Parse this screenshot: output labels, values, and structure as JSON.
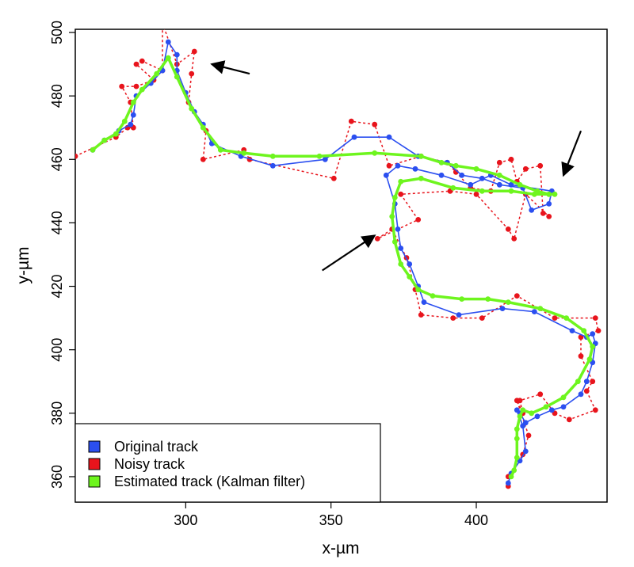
{
  "chart_data": {
    "type": "line",
    "xlabel": "x-µm",
    "ylabel": "y-µm",
    "xlim": [
      262,
      445
    ],
    "ylim": [
      352,
      501
    ],
    "x_ticks": [
      300,
      350,
      400
    ],
    "y_ticks": [
      360,
      380,
      400,
      420,
      440,
      460,
      480,
      500
    ],
    "grid": false,
    "legend_position": "bottom-left",
    "series": [
      {
        "name": "Original track",
        "color": "#2b4ff0",
        "line_style": "solid",
        "points": [
          [
            268,
            463
          ],
          [
            272,
            466
          ],
          [
            277,
            469
          ],
          [
            281,
            471
          ],
          [
            282,
            474
          ],
          [
            283,
            480
          ],
          [
            288,
            484
          ],
          [
            292,
            488
          ],
          [
            294,
            497
          ],
          [
            297,
            493
          ],
          [
            297,
            488
          ],
          [
            300,
            481
          ],
          [
            303,
            475
          ],
          [
            306,
            471
          ],
          [
            309,
            465
          ],
          [
            319,
            461
          ],
          [
            330,
            458
          ],
          [
            348,
            460
          ],
          [
            358,
            467
          ],
          [
            370,
            467
          ],
          [
            380,
            461
          ],
          [
            390,
            459
          ],
          [
            395,
            455
          ],
          [
            402,
            454
          ],
          [
            408,
            452
          ],
          [
            416,
            451
          ],
          [
            419,
            444
          ],
          [
            425,
            446
          ],
          [
            426,
            450
          ],
          [
            412,
            452
          ],
          [
            405,
            455
          ],
          [
            398,
            452
          ],
          [
            388,
            455
          ],
          [
            379,
            457
          ],
          [
            373,
            458
          ],
          [
            369,
            455
          ],
          [
            372,
            446
          ],
          [
            373,
            438
          ],
          [
            374,
            432
          ],
          [
            377,
            427
          ],
          [
            380,
            420
          ],
          [
            382,
            415
          ],
          [
            394,
            411
          ],
          [
            409,
            413
          ],
          [
            420,
            412
          ],
          [
            433,
            406
          ],
          [
            438,
            404
          ],
          [
            440,
            405
          ],
          [
            441,
            402
          ],
          [
            440,
            396
          ],
          [
            438,
            390
          ],
          [
            436,
            386
          ],
          [
            430,
            382
          ],
          [
            426,
            381
          ],
          [
            421,
            379
          ],
          [
            417,
            377
          ],
          [
            415,
            380
          ],
          [
            414,
            381
          ],
          [
            416,
            376
          ],
          [
            417,
            368
          ],
          [
            415,
            365
          ],
          [
            412,
            361
          ],
          [
            411,
            358
          ]
        ]
      },
      {
        "name": "Noisy track",
        "color": "#e8141c",
        "line_style": "dashed",
        "points": [
          [
            262,
            461
          ],
          [
            276,
            467
          ],
          [
            280,
            470
          ],
          [
            282,
            470
          ],
          [
            281,
            478
          ],
          [
            278,
            483
          ],
          [
            283,
            483
          ],
          [
            289,
            485
          ],
          [
            283,
            490
          ],
          [
            285,
            491
          ],
          [
            292,
            488
          ],
          [
            292,
            503
          ],
          [
            297,
            490
          ],
          [
            303,
            494
          ],
          [
            302,
            487
          ],
          [
            301,
            478
          ],
          [
            307,
            469
          ],
          [
            306,
            460
          ],
          [
            320,
            463
          ],
          [
            322,
            460
          ],
          [
            351,
            454
          ],
          [
            357,
            472
          ],
          [
            365,
            471
          ],
          [
            370,
            458
          ],
          [
            381,
            461
          ],
          [
            390,
            459
          ],
          [
            393,
            456
          ],
          [
            398,
            451
          ],
          [
            405,
            450
          ],
          [
            408,
            459
          ],
          [
            412,
            460
          ],
          [
            414,
            453
          ],
          [
            417,
            457
          ],
          [
            422,
            458
          ],
          [
            423,
            443
          ],
          [
            425,
            442
          ],
          [
            417,
            449
          ],
          [
            413,
            435
          ],
          [
            411,
            438
          ],
          [
            400,
            449
          ],
          [
            391,
            450
          ],
          [
            374,
            449
          ],
          [
            380,
            441
          ],
          [
            366,
            435
          ],
          [
            371,
            438
          ],
          [
            376,
            429
          ],
          [
            379,
            419
          ],
          [
            381,
            411
          ],
          [
            392,
            410
          ],
          [
            402,
            410
          ],
          [
            414,
            417
          ],
          [
            427,
            410
          ],
          [
            441,
            410
          ],
          [
            442,
            406
          ],
          [
            436,
            404
          ],
          [
            436,
            398
          ],
          [
            440,
            390
          ],
          [
            438,
            387
          ],
          [
            441,
            381
          ],
          [
            432,
            378
          ],
          [
            427,
            380
          ],
          [
            422,
            386
          ],
          [
            415,
            384
          ],
          [
            416,
            380
          ],
          [
            414,
            384
          ],
          [
            418,
            373
          ],
          [
            416,
            367
          ],
          [
            411,
            360
          ],
          [
            411,
            357
          ]
        ]
      },
      {
        "name": "Estimated track (Kalman filter)",
        "color": "#6ef51e",
        "line_style": "solid",
        "points": [
          [
            268,
            463
          ],
          [
            272,
            466
          ],
          [
            276,
            468
          ],
          [
            279,
            472
          ],
          [
            282,
            478
          ],
          [
            285,
            482
          ],
          [
            290,
            487
          ],
          [
            294,
            492
          ],
          [
            297,
            486
          ],
          [
            302,
            476
          ],
          [
            306,
            470
          ],
          [
            312,
            463
          ],
          [
            320,
            462
          ],
          [
            330,
            461
          ],
          [
            346,
            461
          ],
          [
            365,
            462
          ],
          [
            381,
            461
          ],
          [
            388,
            459
          ],
          [
            393,
            458
          ],
          [
            400,
            457
          ],
          [
            408,
            455
          ],
          [
            415,
            452
          ],
          [
            421,
            450
          ],
          [
            425,
            449
          ],
          [
            427,
            449
          ],
          [
            420,
            449
          ],
          [
            412,
            450
          ],
          [
            402,
            450
          ],
          [
            392,
            451
          ],
          [
            381,
            454
          ],
          [
            374,
            453
          ],
          [
            372,
            448
          ],
          [
            371,
            442
          ],
          [
            372,
            434
          ],
          [
            374,
            427
          ],
          [
            377,
            423
          ],
          [
            380,
            419
          ],
          [
            385,
            417
          ],
          [
            395,
            416
          ],
          [
            404,
            416
          ],
          [
            411,
            415
          ],
          [
            422,
            413
          ],
          [
            431,
            410
          ],
          [
            437,
            406
          ],
          [
            440,
            401
          ],
          [
            439,
            397
          ],
          [
            435,
            390
          ],
          [
            430,
            385
          ],
          [
            424,
            382
          ],
          [
            419,
            380
          ],
          [
            416,
            381
          ],
          [
            415,
            379
          ],
          [
            414,
            375
          ],
          [
            414,
            372
          ],
          [
            414,
            366
          ],
          [
            413,
            362
          ],
          [
            412,
            360
          ]
        ]
      }
    ],
    "annotations": [
      {
        "type": "arrow",
        "from": [
          322,
          487
        ],
        "to": [
          309,
          490
        ]
      },
      {
        "type": "arrow",
        "from": [
          436,
          469
        ],
        "to": [
          430,
          455
        ]
      },
      {
        "type": "arrow",
        "from": [
          347,
          425
        ],
        "to": [
          365,
          436
        ]
      }
    ]
  },
  "legend": {
    "items": [
      {
        "label": "Original track",
        "color": "#2b4ff0"
      },
      {
        "label": "Noisy track",
        "color": "#e8141c"
      },
      {
        "label": "Estimated track (Kalman filter)",
        "color": "#6ef51e"
      }
    ]
  }
}
